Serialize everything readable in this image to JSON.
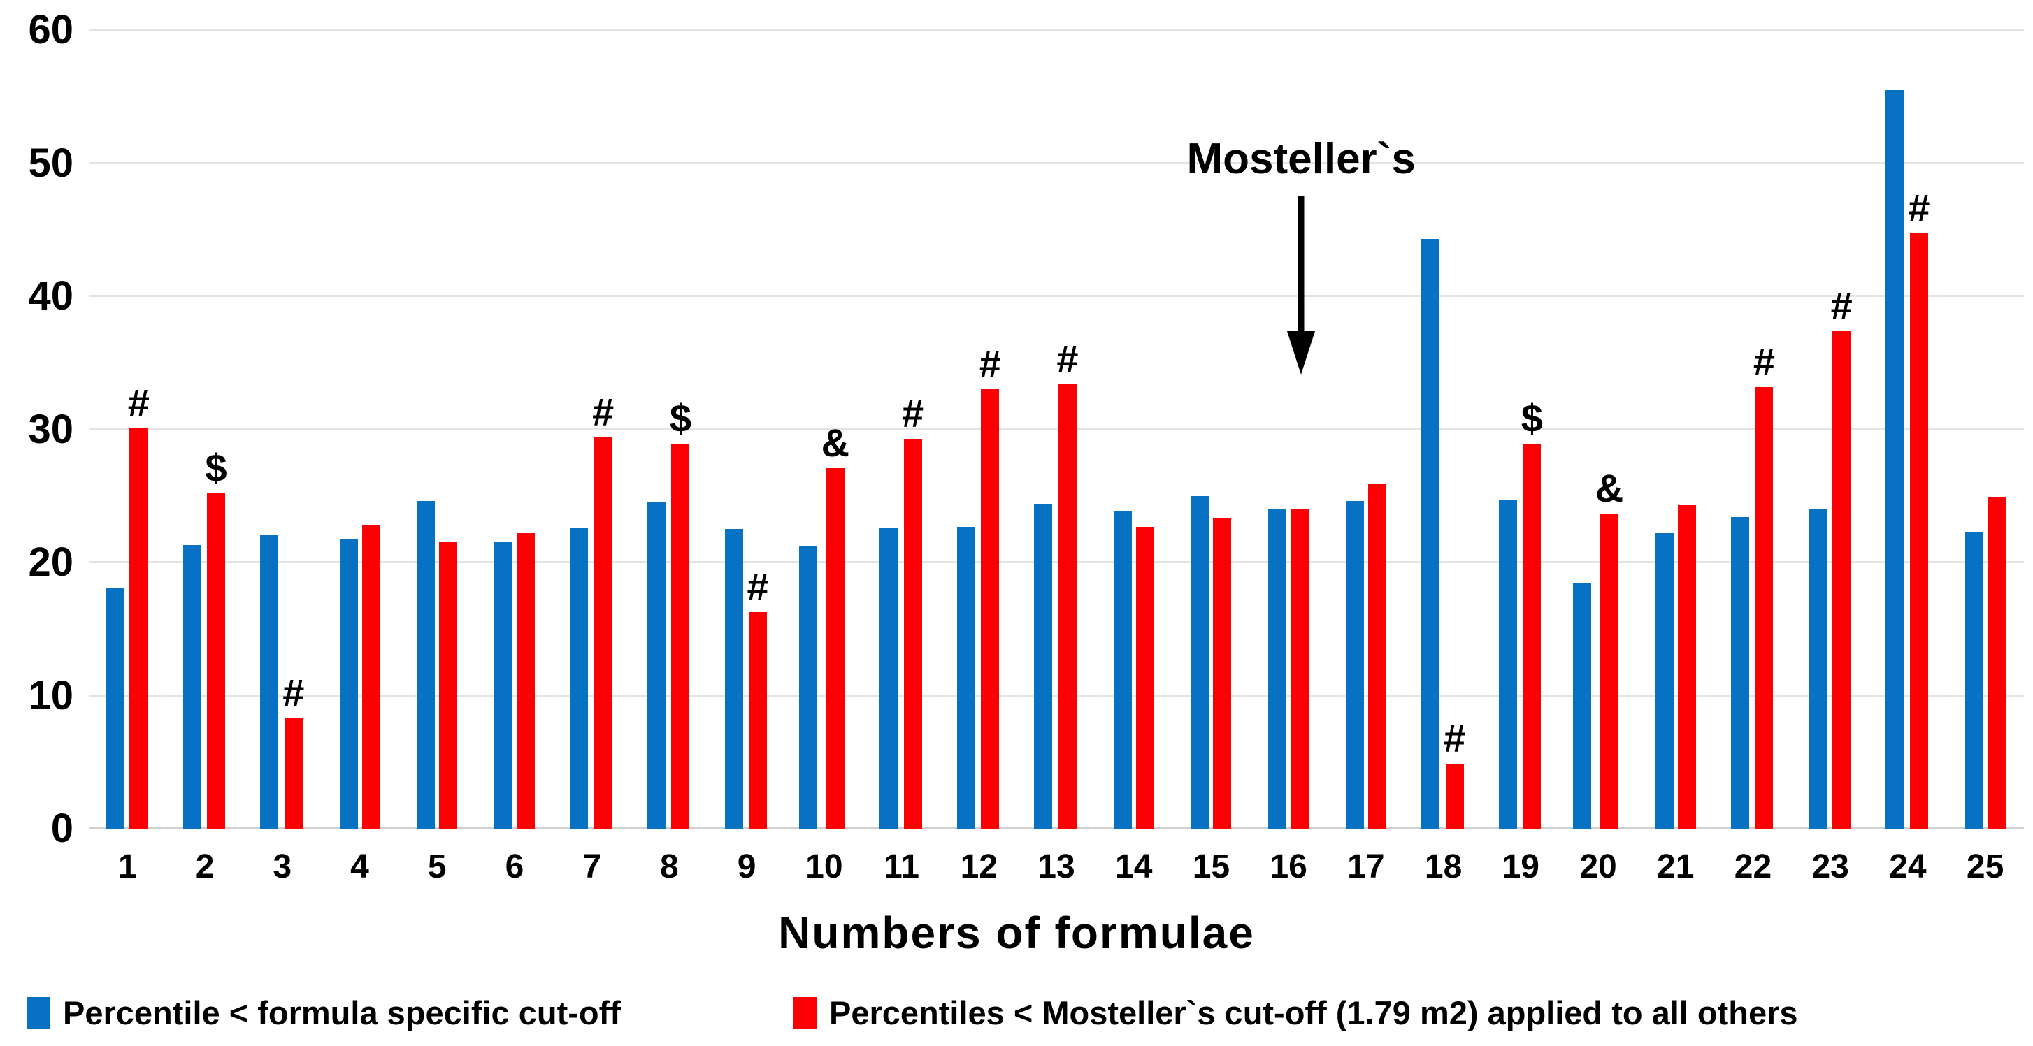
{
  "chart_data": {
    "type": "bar",
    "title": "",
    "xlabel": "Numbers of formulae",
    "ylabel": "",
    "ylim": [
      0,
      60
    ],
    "yticks": [
      0,
      10,
      20,
      30,
      40,
      50,
      60
    ],
    "grid": true,
    "legend_position": "bottom",
    "categories": [
      "1",
      "2",
      "3",
      "4",
      "5",
      "6",
      "7",
      "8",
      "9",
      "10",
      "11",
      "12",
      "13",
      "14",
      "15",
      "16",
      "17",
      "18",
      "19",
      "20",
      "21",
      "22",
      "23",
      "24",
      "25"
    ],
    "series": [
      {
        "name": "Percentile < formula specific cut-off",
        "color": "#0772c4",
        "values": [
          18.1,
          21.3,
          22.1,
          21.8,
          24.6,
          21.6,
          22.6,
          24.5,
          22.5,
          21.2,
          22.6,
          22.7,
          24.4,
          23.9,
          25.0,
          24.0,
          24.6,
          44.3,
          24.7,
          18.4,
          22.2,
          23.4,
          24.0,
          55.5,
          22.3
        ]
      },
      {
        "name": "Percentiles < Mosteller`s cut-off (1.79 m2) applied to all others",
        "color": "#fb0104",
        "values": [
          30.1,
          25.2,
          8.3,
          22.8,
          21.6,
          22.2,
          29.4,
          28.9,
          16.3,
          27.1,
          29.3,
          33.0,
          33.4,
          22.7,
          23.3,
          24.0,
          25.9,
          4.9,
          28.9,
          23.7,
          24.3,
          33.2,
          37.4,
          44.7,
          24.9
        ]
      }
    ],
    "significance_markers": [
      "#",
      "$",
      "#",
      "",
      "",
      "",
      "#",
      "$",
      "#",
      "&",
      "#",
      "#",
      "#",
      "",
      "",
      "",
      "",
      "#",
      "$",
      "&",
      "",
      "#",
      "#",
      "#",
      ""
    ],
    "annotation": {
      "text": "Mosteller`s",
      "target_category": "16"
    },
    "colors": {
      "blue": "#0772c4",
      "red": "#fb0104",
      "gridline": "#e4e4e4",
      "axis_line": "#cfcfcf",
      "text": "#000000"
    }
  }
}
